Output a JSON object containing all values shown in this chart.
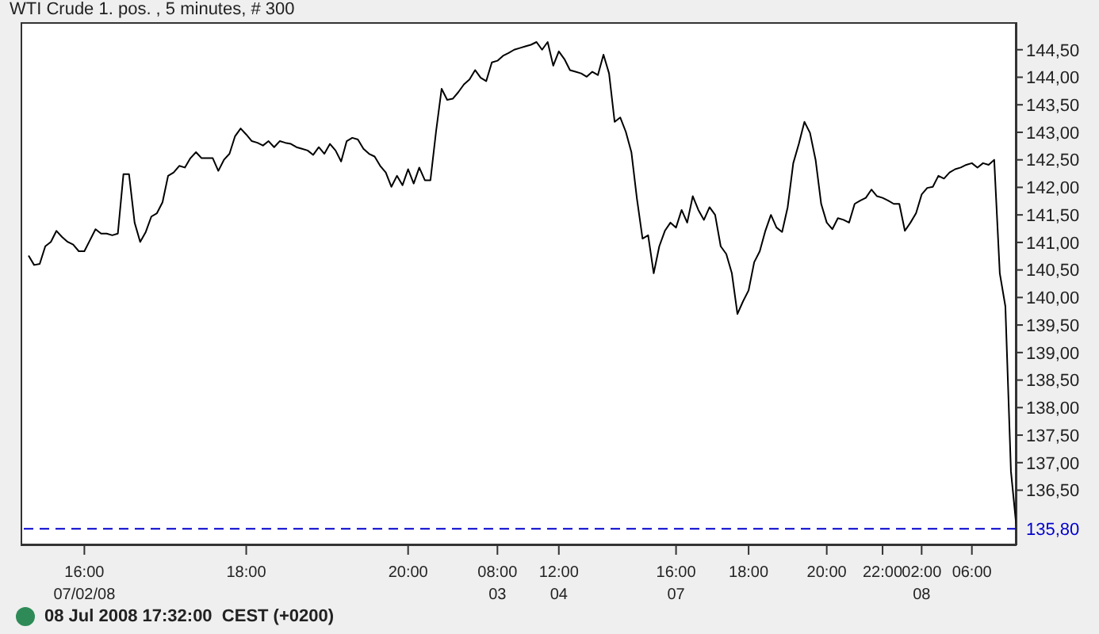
{
  "chart_data": {
    "type": "line",
    "title": "WTI Crude 1. pos. , 5 minutes, # 300",
    "annotations": [
      "08 Jul 2008 17:32:00  CEST (+0200)"
    ],
    "categories": [
      null,
      null,
      null,
      null,
      null,
      null,
      null,
      null,
      null,
      null,
      "16:00\n07/02/08",
      null,
      null,
      null,
      null,
      null,
      null,
      null,
      null,
      null,
      null,
      null,
      null,
      null,
      null,
      null,
      null,
      null,
      null,
      null,
      null,
      null,
      null,
      null,
      null,
      null,
      null,
      null,
      null,
      "18:00",
      null,
      null,
      null,
      null,
      null,
      null,
      null,
      null,
      null,
      null,
      null,
      null,
      null,
      null,
      null,
      null,
      null,
      null,
      null,
      null,
      null,
      null,
      null,
      null,
      null,
      null,
      null,
      null,
      "20:00",
      null,
      null,
      null,
      null,
      null,
      null,
      null,
      null,
      null,
      null,
      null,
      null,
      null,
      null,
      null,
      "08:00\n03",
      null,
      null,
      null,
      null,
      null,
      null,
      null,
      null,
      null,
      null,
      "12:00\n04",
      null,
      null,
      null,
      null,
      null,
      null,
      null,
      null,
      null,
      null,
      null,
      null,
      null,
      null,
      null,
      null,
      null,
      null,
      null,
      null,
      "16:00\n07",
      null,
      null,
      null,
      null,
      null,
      null,
      null,
      null,
      null,
      null,
      null,
      null,
      "18:00",
      null,
      null,
      null,
      null,
      null,
      null,
      null,
      null,
      null,
      null,
      null,
      null,
      null,
      "20:00",
      null,
      null,
      null,
      null,
      null,
      null,
      null,
      null,
      null,
      "22:00",
      null,
      null,
      null,
      null,
      null,
      null,
      "02:00\n08",
      null,
      null,
      null,
      null,
      null,
      null,
      null,
      null,
      "06:00",
      null,
      null,
      null,
      null,
      null,
      null,
      null,
      null
    ],
    "series": [
      {
        "color": "#000000",
        "values": [
          140.76,
          140.59,
          140.61,
          140.93,
          141.01,
          141.21,
          141.1,
          141.01,
          140.96,
          140.84,
          140.84,
          141.04,
          141.24,
          141.16,
          141.16,
          141.13,
          141.16,
          142.24,
          142.24,
          141.36,
          141.01,
          141.19,
          141.47,
          141.53,
          141.73,
          142.21,
          142.27,
          142.39,
          142.36,
          142.53,
          142.64,
          142.53,
          142.53,
          142.53,
          142.3,
          142.5,
          142.61,
          142.93,
          143.07,
          142.96,
          142.84,
          142.81,
          142.76,
          142.84,
          142.73,
          142.84,
          142.81,
          142.79,
          142.73,
          142.7,
          142.67,
          142.59,
          142.73,
          142.61,
          142.79,
          142.67,
          142.47,
          142.84,
          142.9,
          142.87,
          142.7,
          142.61,
          142.56,
          142.39,
          142.27,
          142.01,
          142.21,
          142.04,
          142.33,
          142.07,
          142.36,
          142.13,
          142.13,
          143.01,
          143.79,
          143.59,
          143.61,
          143.73,
          143.87,
          143.96,
          144.13,
          143.99,
          143.93,
          144.27,
          144.3,
          144.39,
          144.44,
          144.5,
          144.53,
          144.56,
          144.59,
          144.64,
          144.5,
          144.64,
          144.21,
          144.47,
          144.33,
          144.13,
          144.1,
          144.07,
          144.01,
          144.1,
          144.04,
          144.41,
          144.07,
          143.19,
          143.27,
          143.01,
          142.64,
          141.79,
          141.07,
          141.13,
          140.44,
          140.93,
          141.21,
          141.36,
          141.27,
          141.59,
          141.36,
          141.84,
          141.59,
          141.41,
          141.64,
          141.5,
          140.93,
          140.79,
          140.44,
          139.7,
          139.93,
          140.13,
          140.64,
          140.84,
          141.21,
          141.5,
          141.27,
          141.19,
          141.64,
          142.44,
          142.79,
          143.19,
          142.99,
          142.5,
          141.7,
          141.36,
          141.24,
          141.44,
          141.41,
          141.36,
          141.7,
          141.76,
          141.81,
          141.96,
          141.84,
          141.81,
          141.76,
          141.7,
          141.7,
          141.21,
          141.36,
          141.53,
          141.87,
          141.99,
          142.01,
          142.21,
          142.16,
          142.27,
          142.33,
          142.36,
          142.41,
          142.44,
          142.36,
          142.44,
          142.41,
          142.5,
          140.44,
          139.84,
          136.84,
          135.81
        ]
      }
    ],
    "ylim": [
      135.5,
      145
    ],
    "yticks": [
      {
        "value": 136.5,
        "label": "136,50"
      },
      {
        "value": 137,
        "label": "137,00"
      },
      {
        "value": 137.5,
        "label": "137,50"
      },
      {
        "value": 138,
        "label": "138,00"
      },
      {
        "value": 138.5,
        "label": "138,50"
      },
      {
        "value": 139,
        "label": "139,00"
      },
      {
        "value": 139.5,
        "label": "139,50"
      },
      {
        "value": 140,
        "label": "140,00"
      },
      {
        "value": 140.5,
        "label": "140,50"
      },
      {
        "value": 141,
        "label": "141,00"
      },
      {
        "value": 141.5,
        "label": "141,50"
      },
      {
        "value": 142,
        "label": "142,00"
      },
      {
        "value": 142.5,
        "label": "142,50"
      },
      {
        "value": 143,
        "label": "143,00"
      },
      {
        "value": 143.5,
        "label": "143,50"
      },
      {
        "value": 144,
        "label": "144,00"
      },
      {
        "value": 144.5,
        "label": "144,50"
      }
    ],
    "ref_lines": [
      {
        "axis": "y",
        "value": 135.8,
        "label": "135,80",
        "color": "#0000cc",
        "line_style": "dashed"
      }
    ],
    "marker": "none",
    "line_style": "solid"
  }
}
